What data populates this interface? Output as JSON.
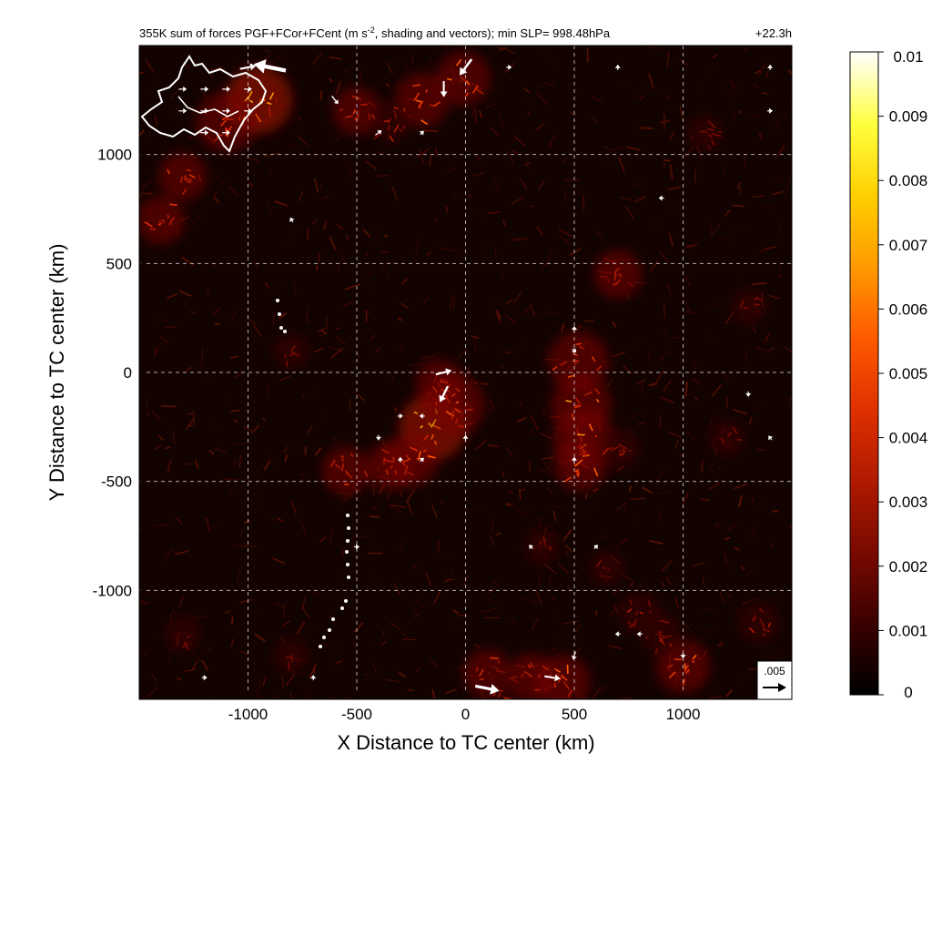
{
  "chart_data": {
    "type": "heatmap",
    "title": "355K sum of forces PGF+FCor+FCent (m s",
    "title_superscript": "-2",
    "title_rest": ", shading and vectors); min SLP= 998.48hPa",
    "time_label": "+22.3h",
    "xlabel": "X Distance to TC center (km)",
    "ylabel": "Y Distance to TC center (km)",
    "xlim": [
      -1500,
      1500
    ],
    "ylim": [
      -1500,
      1500
    ],
    "xticks": [
      -1000,
      -500,
      0,
      500,
      1000
    ],
    "yticks": [
      -1000,
      -500,
      0,
      500,
      1000
    ],
    "grid": "dashed",
    "colorbar": {
      "min": 0,
      "max": 0.01,
      "ticks": [
        {
          "value": 0.01,
          "label": "0.01"
        },
        {
          "value": 0.009,
          "label": "0.009"
        },
        {
          "value": 0.008,
          "label": "0.008"
        },
        {
          "value": 0.007,
          "label": "0.007"
        },
        {
          "value": 0.006,
          "label": "0.006"
        },
        {
          "value": 0.005,
          "label": "0.005"
        },
        {
          "value": 0.004,
          "label": "0.004"
        },
        {
          "value": 0.003,
          "label": "0.003"
        },
        {
          "value": 0.002,
          "label": "0.002"
        },
        {
          "value": 0.001,
          "label": "0.001"
        },
        {
          "value": 0,
          "label": "0"
        }
      ],
      "colors": [
        "#000000",
        "#3a0000",
        "#7a0a00",
        "#b01a00",
        "#e03000",
        "#ff5a00",
        "#ff9a00",
        "#ffd000",
        "#ffff40",
        "#ffffff"
      ]
    },
    "reference_vector": {
      "label": ".005",
      "magnitude": 0.005
    },
    "hotspots": [
      {
        "x": -950,
        "y": 1250,
        "v": 0.007
      },
      {
        "x": -1100,
        "y": 1150,
        "v": 0.006
      },
      {
        "x": -1300,
        "y": 900,
        "v": 0.004
      },
      {
        "x": -1400,
        "y": 700,
        "v": 0.004
      },
      {
        "x": -200,
        "y": 1250,
        "v": 0.005
      },
      {
        "x": -10,
        "y": 1350,
        "v": 0.005
      },
      {
        "x": -500,
        "y": 1200,
        "v": 0.004
      },
      {
        "x": -350,
        "y": 1150,
        "v": 0.003
      },
      {
        "x": -150,
        "y": -250,
        "v": 0.007
      },
      {
        "x": -50,
        "y": -150,
        "v": 0.006
      },
      {
        "x": -250,
        "y": -400,
        "v": 0.005
      },
      {
        "x": -350,
        "y": -430,
        "v": 0.004
      },
      {
        "x": -550,
        "y": -450,
        "v": 0.004
      },
      {
        "x": -120,
        "y": -50,
        "v": 0.004
      },
      {
        "x": 520,
        "y": 50,
        "v": 0.006
      },
      {
        "x": 530,
        "y": -150,
        "v": 0.006
      },
      {
        "x": 540,
        "y": -300,
        "v": 0.006
      },
      {
        "x": 530,
        "y": -420,
        "v": 0.005
      },
      {
        "x": 700,
        "y": 450,
        "v": 0.004
      },
      {
        "x": 700,
        "y": -350,
        "v": 0.003
      },
      {
        "x": 1000,
        "y": -1350,
        "v": 0.005
      },
      {
        "x": 450,
        "y": -1420,
        "v": 0.005
      },
      {
        "x": 300,
        "y": -1400,
        "v": 0.004
      },
      {
        "x": 100,
        "y": -1380,
        "v": 0.004
      },
      {
        "x": 800,
        "y": -1100,
        "v": 0.003
      },
      {
        "x": 900,
        "y": -1200,
        "v": 0.003
      },
      {
        "x": 1350,
        "y": -1150,
        "v": 0.003
      },
      {
        "x": 150,
        "y": -1450,
        "v": 0.003
      },
      {
        "x": -800,
        "y": -1300,
        "v": 0.002
      },
      {
        "x": -1300,
        "y": -1200,
        "v": 0.002
      },
      {
        "x": 1300,
        "y": 300,
        "v": 0.002
      },
      {
        "x": 1200,
        "y": -300,
        "v": 0.002
      },
      {
        "x": 350,
        "y": -800,
        "v": 0.002
      },
      {
        "x": 650,
        "y": -900,
        "v": 0.002
      },
      {
        "x": -800,
        "y": 100,
        "v": 0.002
      },
      {
        "x": 1100,
        "y": 1100,
        "v": 0.002
      }
    ],
    "vectors": [
      {
        "x": -1000,
        "y": 1400,
        "u": 0.002,
        "v": 0.0004
      },
      {
        "x": -900,
        "y": 1400,
        "u": -0.004,
        "v": 0.0008
      },
      {
        "x": -1300,
        "y": 1300,
        "u": 0.001,
        "v": 0.0
      },
      {
        "x": -1200,
        "y": 1300,
        "u": 0.001,
        "v": 0.0
      },
      {
        "x": -1100,
        "y": 1300,
        "u": 0.001,
        "v": 0.0
      },
      {
        "x": -1000,
        "y": 1300,
        "u": 0.001,
        "v": 0.0
      },
      {
        "x": -1300,
        "y": 1200,
        "u": 0.001,
        "v": 0.0
      },
      {
        "x": -1200,
        "y": 1200,
        "u": 0.001,
        "v": 0.0
      },
      {
        "x": -1100,
        "y": 1200,
        "u": 0.001,
        "v": 0.0
      },
      {
        "x": -1000,
        "y": 1200,
        "u": 0.001,
        "v": 0.0
      },
      {
        "x": -1200,
        "y": 1100,
        "u": 0.001,
        "v": 0.0
      },
      {
        "x": -1100,
        "y": 1100,
        "u": 0.001,
        "v": 0.0
      },
      {
        "x": 0,
        "y": 1400,
        "u": -0.0015,
        "v": -0.002
      },
      {
        "x": -100,
        "y": 1300,
        "u": 0.0,
        "v": -0.002
      },
      {
        "x": -600,
        "y": 1250,
        "u": 0.0008,
        "v": -0.001
      },
      {
        "x": -400,
        "y": 1100,
        "u": 0.0008,
        "v": 0.0006
      },
      {
        "x": -100,
        "y": 0,
        "u": 0.002,
        "v": 0.0005
      },
      {
        "x": -100,
        "y": -100,
        "u": -0.001,
        "v": -0.002
      },
      {
        "x": 100,
        "y": -1450,
        "u": 0.003,
        "v": -0.0006
      },
      {
        "x": 400,
        "y": -1400,
        "u": 0.002,
        "v": -0.0003
      },
      {
        "x": 500,
        "y": -1300,
        "u": -0.0003,
        "v": -0.001
      },
      {
        "x": -800,
        "y": 700,
        "u": -0.0003,
        "v": 0.0005
      },
      {
        "x": -200,
        "y": 1100,
        "u": 0.0003,
        "v": 0.0003
      },
      {
        "x": 200,
        "y": 1400,
        "u": 0.0004,
        "v": 0.0
      },
      {
        "x": 700,
        "y": 1400,
        "u": 0.0,
        "v": 0.0004
      },
      {
        "x": 1400,
        "y": 1400,
        "u": 0.0,
        "v": 0.0004
      },
      {
        "x": 1400,
        "y": 1200,
        "u": 0.0003,
        "v": 0.0
      },
      {
        "x": 900,
        "y": 800,
        "u": -0.0003,
        "v": 0.0
      },
      {
        "x": 500,
        "y": 100,
        "u": 0.0005,
        "v": -0.0004
      },
      {
        "x": 500,
        "y": 200,
        "u": 0.0,
        "v": 0.0005
      },
      {
        "x": 500,
        "y": -400,
        "u": 0.0,
        "v": 0.0005
      },
      {
        "x": 1300,
        "y": -100,
        "u": 0.0,
        "v": -0.0004
      },
      {
        "x": 1400,
        "y": -300,
        "u": -0.0003,
        "v": 0.0004
      },
      {
        "x": -200,
        "y": -200,
        "u": -0.0004,
        "v": 0.0
      },
      {
        "x": -300,
        "y": -200,
        "u": 0.0004,
        "v": 0.0
      },
      {
        "x": -400,
        "y": -300,
        "u": 0.0,
        "v": -0.0004
      },
      {
        "x": -200,
        "y": -400,
        "u": 0.0003,
        "v": 0.0003
      },
      {
        "x": 0,
        "y": -300,
        "u": 0.0,
        "v": 0.0004
      },
      {
        "x": -300,
        "y": -400,
        "u": 0.0,
        "v": 0.0004
      },
      {
        "x": 700,
        "y": -1200,
        "u": -0.0004,
        "v": 0.0
      },
      {
        "x": 800,
        "y": -1200,
        "u": -0.0004,
        "v": 0.0
      },
      {
        "x": 1000,
        "y": -1300,
        "u": 0.0,
        "v": -0.0004
      },
      {
        "x": 600,
        "y": -800,
        "u": 0.0003,
        "v": 0.0003
      },
      {
        "x": 300,
        "y": -800,
        "u": -0.0003,
        "v": 0.0003
      },
      {
        "x": -500,
        "y": -800,
        "u": 0.0004,
        "v": 0.0
      },
      {
        "x": -700,
        "y": -1400,
        "u": 0.0,
        "v": 0.0004
      },
      {
        "x": -1200,
        "y": -1400,
        "u": 0.0003,
        "v": 0.0
      }
    ]
  }
}
